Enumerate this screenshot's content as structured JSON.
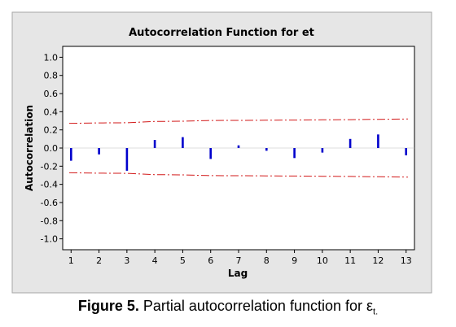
{
  "caption": {
    "lead": "Figure 5.",
    "text": " Partial autocorrelation function for ε",
    "subscript": "t."
  },
  "colors": {
    "frame_border": "#a7a7a7",
    "panel_bg": "#e6e6e6",
    "plot_bg": "#ffffff",
    "bars": "#0000cc",
    "limits": "#d21919"
  },
  "chart_data": {
    "type": "bar",
    "title": "Autocorrelation Function for et",
    "xlabel": "Lag",
    "ylabel": "Autocorrelation",
    "x": [
      1,
      2,
      3,
      4,
      5,
      6,
      7,
      8,
      9,
      10,
      11,
      12,
      13
    ],
    "values": [
      -0.14,
      -0.07,
      -0.25,
      0.09,
      0.12,
      -0.12,
      0.03,
      -0.03,
      -0.11,
      -0.05,
      0.1,
      0.15,
      -0.08
    ],
    "xlim": [
      0.7,
      13.3
    ],
    "ylim": [
      -1.12,
      1.12
    ],
    "yticks": [
      1.0,
      0.8,
      0.6,
      0.4,
      0.2,
      0.0,
      -0.2,
      -0.4,
      -0.6,
      -0.8,
      -1.0
    ],
    "ytick_labels": [
      "1.0",
      "0.8",
      "0.6",
      "0.4",
      "0.2",
      "0.0",
      "-0.2",
      "-0.4",
      "-0.6",
      "-0.8",
      "-1.0"
    ],
    "xtick_labels": [
      "1",
      "2",
      "3",
      "4",
      "5",
      "6",
      "7",
      "8",
      "9",
      "10",
      "11",
      "12",
      "13"
    ],
    "upper_limit": [
      0.272,
      0.277,
      0.279,
      0.293,
      0.296,
      0.304,
      0.305,
      0.306,
      0.308,
      0.311,
      0.313,
      0.316,
      0.32
    ],
    "lower_limit": [
      -0.272,
      -0.277,
      -0.279,
      -0.293,
      -0.296,
      -0.304,
      -0.305,
      -0.306,
      -0.308,
      -0.311,
      -0.313,
      -0.316,
      -0.32
    ],
    "limit_line_style": "dash-dot",
    "grid": false,
    "legend": "none"
  }
}
